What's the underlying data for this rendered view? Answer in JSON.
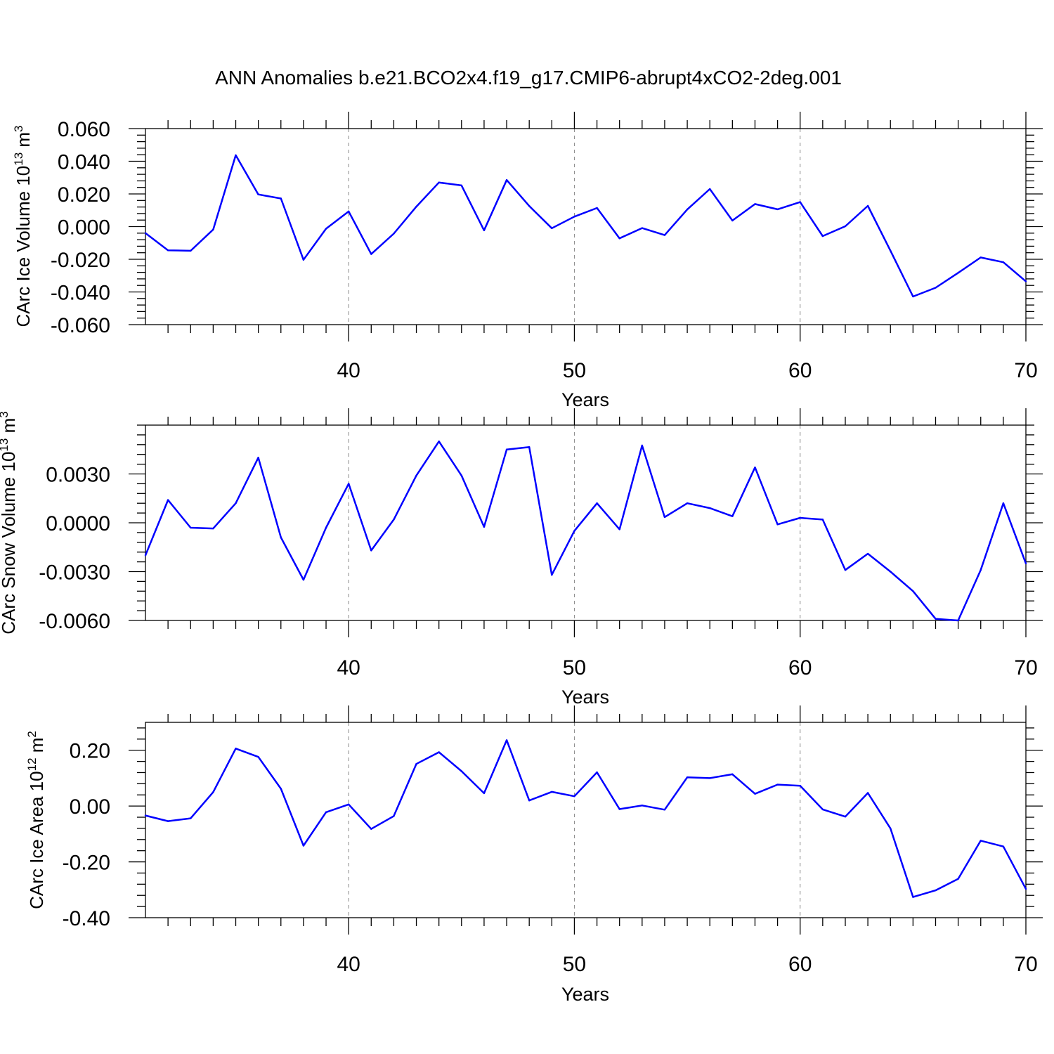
{
  "title": "ANN Anomalies b.e21.BCO2x4.f19_g17.CMIP6-abrupt4xCO2-2deg.001",
  "line_color": "#0000ff",
  "chart_data": [
    {
      "type": "line",
      "title": "",
      "xlabel": "Years",
      "ylabel": {
        "text": "CArc Ice Volume 10",
        "sup": "13",
        "unit": " m",
        "unit_sup": "3"
      },
      "xlim": [
        31,
        70
      ],
      "ylim": [
        -0.06,
        0.06
      ],
      "xticks": [
        40,
        50,
        60,
        70
      ],
      "yticks": [
        -0.06,
        -0.04,
        -0.02,
        0.0,
        0.02,
        0.04,
        0.06
      ],
      "ytick_labels": [
        "-0.060",
        "-0.040",
        "-0.020",
        "0.000",
        "0.020",
        "0.040",
        "0.060"
      ],
      "grid": "x-dashed",
      "x": [
        31,
        32,
        33,
        34,
        35,
        36,
        37,
        38,
        39,
        40,
        41,
        42,
        43,
        44,
        45,
        46,
        47,
        48,
        49,
        50,
        51,
        52,
        53,
        54,
        55,
        56,
        57,
        58,
        59,
        60,
        61,
        62,
        63,
        64,
        65,
        66,
        67,
        68,
        69,
        70
      ],
      "values": [
        -0.004,
        -0.0145,
        -0.0148,
        -0.0018,
        0.0437,
        0.0197,
        0.0172,
        -0.0203,
        -0.0013,
        0.0093,
        -0.0168,
        -0.0043,
        0.0122,
        0.027,
        0.0252,
        -0.0023,
        0.0285,
        0.0126,
        -0.001,
        0.0061,
        0.0114,
        -0.0072,
        -0.0009,
        -0.0052,
        0.0105,
        0.023,
        0.0037,
        0.0138,
        0.0106,
        0.015,
        -0.0058,
        0.0002,
        0.0127,
        -0.0147,
        -0.0428,
        -0.0374,
        -0.0283,
        -0.0189,
        -0.0218,
        -0.0335
      ]
    },
    {
      "type": "line",
      "title": "",
      "xlabel": "Years",
      "ylabel": {
        "text": "CArc Snow Volume 10",
        "sup": "13",
        "unit": " m",
        "unit_sup": "3"
      },
      "xlim": [
        31,
        70
      ],
      "ylim": [
        -0.006,
        0.006
      ],
      "xticks": [
        40,
        50,
        60,
        70
      ],
      "yticks": [
        -0.006,
        -0.003,
        0.0,
        0.003
      ],
      "ytick_labels": [
        "-0.0060",
        "-0.0030",
        "0.0000",
        "0.0030"
      ],
      "grid": "x-dashed",
      "x": [
        31,
        32,
        33,
        34,
        35,
        36,
        37,
        38,
        39,
        40,
        41,
        42,
        43,
        44,
        45,
        46,
        47,
        48,
        49,
        50,
        51,
        52,
        53,
        54,
        55,
        56,
        57,
        58,
        59,
        60,
        61,
        62,
        63,
        64,
        65,
        66,
        67,
        68,
        69,
        70
      ],
      "values": [
        -0.002,
        0.0014,
        -0.0003,
        -0.00035,
        0.0012,
        0.004,
        -0.0009,
        -0.0035,
        -0.0003,
        0.0024,
        -0.0017,
        0.0002,
        0.0029,
        0.005,
        0.0029,
        -0.00025,
        0.0045,
        0.00465,
        -0.0032,
        -0.0005,
        0.0012,
        -0.0004,
        0.00475,
        0.00035,
        0.0012,
        0.0009,
        0.0004,
        0.0034,
        -0.0001,
        0.0003,
        0.0002,
        -0.0029,
        -0.0019,
        -0.003,
        -0.0042,
        -0.0059,
        -0.006,
        -0.0029,
        0.0012,
        -0.0025
      ]
    },
    {
      "type": "line",
      "title": "",
      "xlabel": "Years",
      "ylabel": {
        "text": "CArc Ice Area 10",
        "sup": "12",
        "unit": " m",
        "unit_sup": "2"
      },
      "xlim": [
        31,
        70
      ],
      "ylim": [
        -0.4,
        0.3
      ],
      "xticks": [
        40,
        50,
        60,
        70
      ],
      "yticks": [
        -0.4,
        -0.2,
        0.0,
        0.2
      ],
      "ytick_labels": [
        "-0.40",
        "-0.20",
        "0.00",
        "0.20"
      ],
      "grid": "x-dashed",
      "x": [
        31,
        32,
        33,
        34,
        35,
        36,
        37,
        38,
        39,
        40,
        41,
        42,
        43,
        44,
        45,
        46,
        47,
        48,
        49,
        50,
        51,
        52,
        53,
        54,
        55,
        56,
        57,
        58,
        59,
        60,
        61,
        62,
        63,
        64,
        65,
        66,
        67,
        68,
        69,
        70
      ],
      "values": [
        -0.034,
        -0.054,
        -0.044,
        0.05,
        0.206,
        0.176,
        0.062,
        -0.142,
        -0.022,
        0.006,
        -0.082,
        -0.036,
        0.151,
        0.193,
        0.125,
        0.046,
        0.236,
        0.02,
        0.051,
        0.035,
        0.121,
        -0.011,
        0.002,
        -0.013,
        0.103,
        0.1,
        0.114,
        0.044,
        0.077,
        0.073,
        -0.012,
        -0.038,
        0.047,
        -0.08,
        -0.326,
        -0.302,
        -0.261,
        -0.124,
        -0.145,
        -0.297
      ]
    }
  ]
}
